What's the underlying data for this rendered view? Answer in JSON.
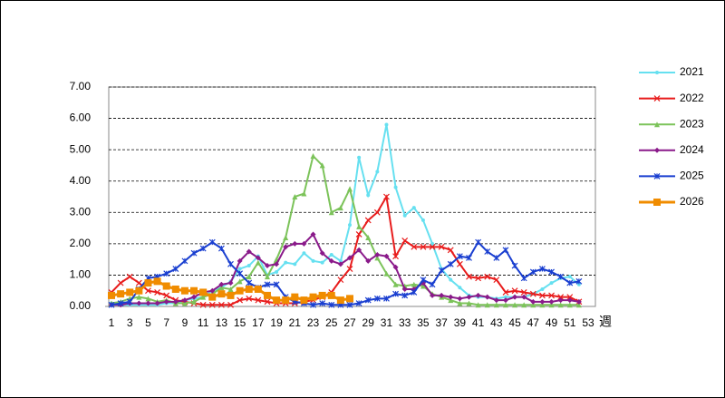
{
  "chart_data": {
    "type": "line",
    "x_label": "週",
    "categories": [
      1,
      null,
      3,
      null,
      5,
      null,
      7,
      null,
      9,
      null,
      11,
      null,
      13,
      null,
      15,
      null,
      17,
      null,
      19,
      null,
      21,
      null,
      23,
      null,
      25,
      null,
      27,
      null,
      29,
      null,
      31,
      null,
      33,
      null,
      35,
      null,
      37,
      null,
      39,
      null,
      41,
      null,
      43,
      null,
      45,
      null,
      47,
      null,
      49,
      null,
      51,
      null,
      53
    ],
    "ylim": [
      0,
      7
    ],
    "yticks": [
      {
        "value": 0,
        "label": "0.00"
      },
      {
        "value": 1,
        "label": "1.00"
      },
      {
        "value": 2,
        "label": "2.00"
      },
      {
        "value": 3,
        "label": "3.00"
      },
      {
        "value": 4,
        "label": "4.00"
      },
      {
        "value": 5,
        "label": "5.00"
      },
      {
        "value": 6,
        "label": "6.00"
      },
      {
        "value": 7,
        "label": "7.00"
      }
    ],
    "grid": true,
    "legend": "right",
    "series": [
      {
        "name": "2021",
        "color": "#66e0f0",
        "marker": "circle",
        "values": [
          0.1,
          0.05,
          0.05,
          0.05,
          0.05,
          0.05,
          0.1,
          0.1,
          0.2,
          0.25,
          0.3,
          0.5,
          0.6,
          0.8,
          1.2,
          1.3,
          1.6,
          1.0,
          1.1,
          1.4,
          1.35,
          1.7,
          1.45,
          1.4,
          1.65,
          1.45,
          2.6,
          4.75,
          3.55,
          4.3,
          5.8,
          3.8,
          2.9,
          3.15,
          2.75,
          2.0,
          1.2,
          0.85,
          0.6,
          0.35,
          0.3,
          0.3,
          0.25,
          0.3,
          0.3,
          0.3,
          0.4,
          0.55,
          0.75,
          0.9,
          0.95,
          0.7,
          null
        ]
      },
      {
        "name": "2022",
        "color": "#e81c1c",
        "marker": "x",
        "values": [
          0.45,
          0.75,
          0.95,
          0.75,
          0.5,
          0.45,
          0.35,
          0.2,
          0.15,
          0.1,
          0.05,
          0.05,
          0.05,
          0.05,
          0.2,
          0.25,
          0.2,
          0.15,
          0.1,
          0.1,
          0.1,
          0.15,
          0.2,
          0.3,
          0.45,
          0.85,
          1.2,
          2.3,
          2.75,
          3.0,
          3.5,
          1.6,
          2.1,
          1.9,
          1.9,
          1.9,
          1.9,
          1.8,
          1.35,
          0.95,
          0.9,
          0.95,
          0.85,
          0.45,
          0.5,
          0.45,
          0.4,
          0.35,
          0.35,
          0.3,
          0.3,
          0.15,
          null
        ]
      },
      {
        "name": "2023",
        "color": "#7cc35a",
        "marker": "triangle",
        "values": [
          0.1,
          0.15,
          0.25,
          0.3,
          0.25,
          0.15,
          0.2,
          0.1,
          0.1,
          0.15,
          0.3,
          0.4,
          0.6,
          0.55,
          0.8,
          0.95,
          1.4,
          0.95,
          1.5,
          2.2,
          3.5,
          3.6,
          4.8,
          4.5,
          3.0,
          3.15,
          3.75,
          2.55,
          2.2,
          1.55,
          1.05,
          0.7,
          0.65,
          0.7,
          0.65,
          0.4,
          0.3,
          0.2,
          0.1,
          0.1,
          0.05,
          0.05,
          0.05,
          0.05,
          0.05,
          0.05,
          0.05,
          0.05,
          0.05,
          0.05,
          0.05,
          0.05,
          null
        ]
      },
      {
        "name": "2024",
        "color": "#8a1a8a",
        "marker": "diamond",
        "values": [
          0.05,
          0.05,
          0.1,
          0.1,
          0.1,
          0.1,
          0.15,
          0.15,
          0.2,
          0.3,
          0.45,
          0.5,
          0.7,
          0.75,
          1.45,
          1.75,
          1.55,
          1.3,
          1.35,
          1.9,
          2.0,
          2.0,
          2.3,
          1.7,
          1.45,
          1.35,
          1.55,
          1.8,
          1.45,
          1.65,
          1.6,
          1.25,
          0.55,
          0.55,
          0.75,
          0.35,
          0.35,
          0.3,
          0.25,
          0.3,
          0.35,
          0.3,
          0.2,
          0.2,
          0.3,
          0.3,
          0.15,
          0.15,
          0.15,
          0.2,
          0.2,
          0.15,
          null
        ]
      },
      {
        "name": "2025",
        "color": "#1a3fd0",
        "marker": "star",
        "values": [
          0.05,
          0.1,
          0.15,
          0.55,
          0.9,
          0.95,
          1.05,
          1.2,
          1.45,
          1.7,
          1.85,
          2.05,
          1.85,
          1.35,
          1.05,
          0.75,
          0.6,
          0.7,
          0.7,
          0.3,
          0.15,
          0.1,
          0.05,
          0.1,
          0.05,
          0.05,
          0.05,
          0.1,
          0.2,
          0.25,
          0.25,
          0.4,
          0.35,
          0.45,
          0.85,
          0.7,
          1.15,
          1.35,
          1.6,
          1.55,
          2.05,
          1.75,
          1.55,
          1.8,
          1.3,
          0.9,
          1.1,
          1.2,
          1.1,
          0.95,
          0.75,
          0.8,
          null
        ]
      },
      {
        "name": "2026",
        "color": "#f08c00",
        "marker": "square",
        "values": [
          0.35,
          0.4,
          0.45,
          0.5,
          0.75,
          0.8,
          0.65,
          0.55,
          0.5,
          0.5,
          0.45,
          0.3,
          0.4,
          0.35,
          0.5,
          0.55,
          0.55,
          0.35,
          0.2,
          0.2,
          0.3,
          0.2,
          0.3,
          0.35,
          0.35,
          0.2,
          0.25,
          null,
          null,
          null,
          null,
          null,
          null,
          null,
          null,
          null,
          null,
          null,
          null,
          null,
          null,
          null,
          null,
          null,
          null,
          null,
          null,
          null,
          null,
          null,
          null,
          null,
          null
        ]
      }
    ]
  }
}
